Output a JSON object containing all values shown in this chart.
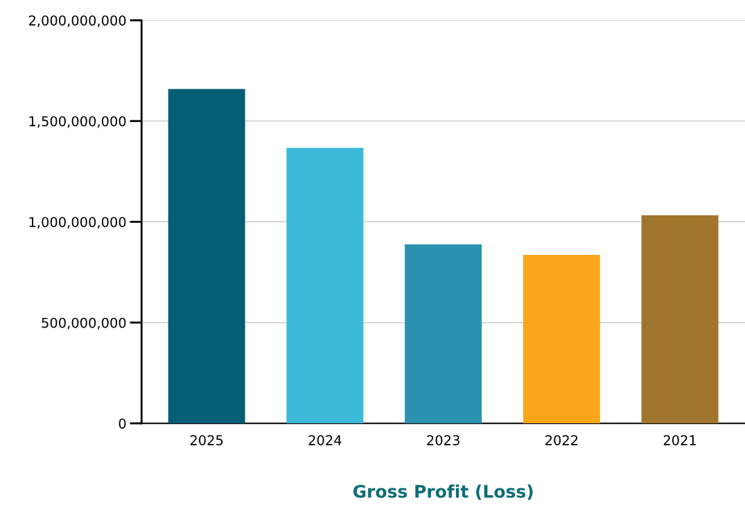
{
  "chart_data": {
    "type": "bar",
    "xlabel": "Gross Profit (Loss)",
    "categories": [
      "2025",
      "2024",
      "2023",
      "2022",
      "2021"
    ],
    "values": [
      1659000000,
      1367000000,
      888000000,
      836000000,
      1033000000
    ],
    "colors": [
      "#045f75",
      "#3cb9d9",
      "#2a92ae",
      "#f9a61b",
      "#a0752e"
    ],
    "ylim": [
      0,
      2000000000
    ],
    "yticks": [
      {
        "value": 0,
        "label": "0"
      },
      {
        "value": 500000000,
        "label": "500,000,000"
      },
      {
        "value": 1000000000,
        "label": "1,000,000,000"
      },
      {
        "value": 1500000000,
        "label": "1,500,000,000"
      },
      {
        "value": 2000000000,
        "label": "2,000,000,000"
      }
    ],
    "grid": "y"
  }
}
